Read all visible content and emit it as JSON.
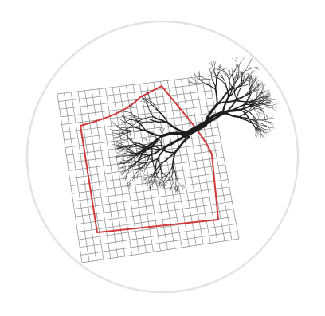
{
  "illustration": {
    "subject": "tree-branches-over-warped-grid",
    "colors": {
      "background": "#ffffff",
      "circle_stroke": "#e3e3e3",
      "grid_stroke": "#8c8c8c",
      "outline_stroke": "#d23a3a",
      "branch_stroke": "#1e1e1e"
    }
  }
}
